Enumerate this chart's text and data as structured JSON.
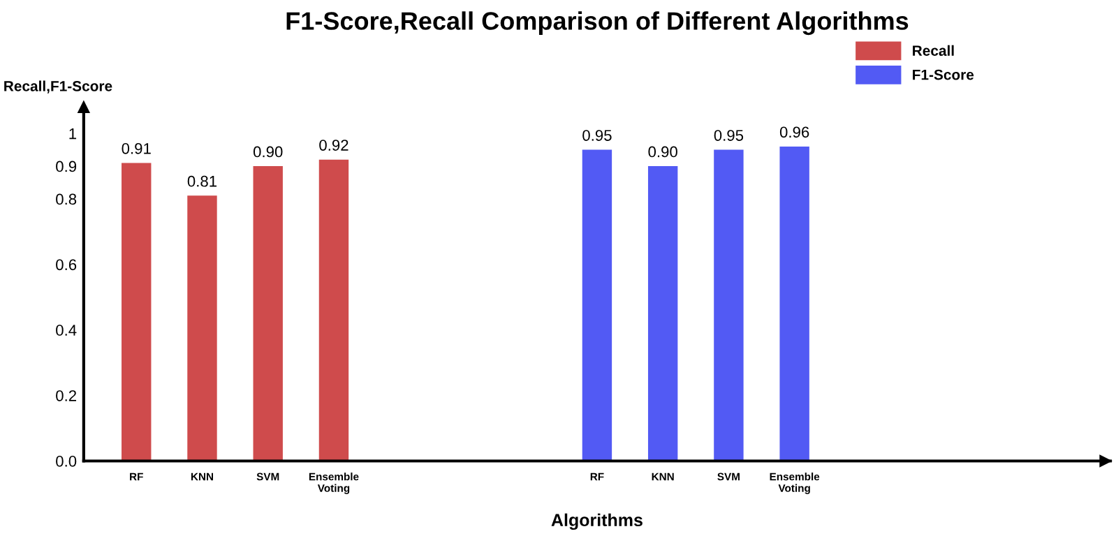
{
  "chart_data": {
    "type": "bar",
    "title": "F1-Score,Recall Comparison of Different Algorithms",
    "xlabel": "Algorithms",
    "ylabel": "Recall,F1-Score",
    "categories": [
      "RF",
      "KNN",
      "SVM",
      "Ensemble\nVoting",
      null,
      null,
      null,
      "RF",
      "KNN",
      "SVM",
      "Ensemble\nVoting"
    ],
    "series": [
      {
        "name": "Recall",
        "color": "#cf4b4c",
        "values": [
          0.91,
          0.81,
          0.9,
          0.92,
          null,
          null,
          null,
          null,
          null,
          null,
          null
        ],
        "value_labels": [
          "0.91",
          "0.81",
          "0.90",
          "0.92",
          null,
          null,
          null,
          null,
          null,
          null,
          null
        ]
      },
      {
        "name": "F1-Score",
        "color": "#525af4",
        "values": [
          null,
          null,
          null,
          null,
          null,
          null,
          null,
          0.95,
          0.9,
          0.95,
          0.96
        ],
        "value_labels": [
          null,
          null,
          null,
          null,
          null,
          null,
          null,
          "0.95",
          "0.90",
          "0.95",
          "0.96"
        ]
      }
    ],
    "ylim": [
      0,
      1.08
    ],
    "yticks": [
      {
        "value": 0,
        "label": "0.0"
      },
      0.2,
      0.4,
      0.6,
      0.8,
      0.9,
      1
    ],
    "legend": "top right",
    "grid": false
  }
}
